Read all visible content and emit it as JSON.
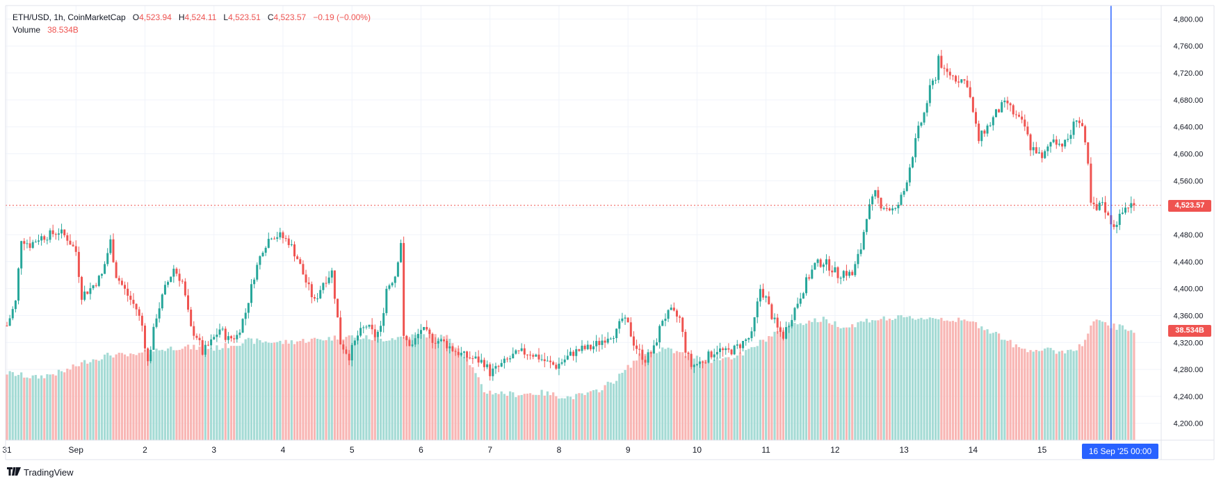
{
  "legend": {
    "symbol": "ETH/USD, 1h, CoinMarketCap",
    "open_label": "O",
    "open": "4,523.94",
    "high_label": "H",
    "high": "4,524.11",
    "low_label": "L",
    "low": "4,523.51",
    "close_label": "C",
    "close": "4,523.57",
    "change": "−0.19 (−0.00%)",
    "volume_label": "Volume",
    "volume": "38.534B"
  },
  "price_tag": "4,523.57",
  "volume_tag": "38.534B",
  "crosshair_label": "16 Sep '25   00:00",
  "brand": "TradingView",
  "colors": {
    "up": "#26a69a",
    "down": "#ef5350",
    "vol_up": "#a5dbd5",
    "vol_down": "#f8b6b4",
    "crosshair": "#2962ff",
    "grid": "#f0f3fa"
  },
  "chart_data": {
    "type": "candlestick",
    "title": "ETH/USD, 1h, CoinMarketCap",
    "timeframe": "1h",
    "y_ticks": [
      "4,800.00",
      "4,760.00",
      "4,720.00",
      "4,680.00",
      "4,640.00",
      "4,600.00",
      "4,560.00",
      "4,520.00",
      "4,480.00",
      "4,440.00",
      "4,400.00",
      "4,360.00",
      "4,320.00",
      "4,280.00",
      "4,240.00",
      "4,200.00"
    ],
    "ylim": [
      4175,
      4820
    ],
    "x_ticks": [
      {
        "label": "31",
        "hour": 0
      },
      {
        "label": "Sep",
        "hour": 24
      },
      {
        "label": "2",
        "hour": 48
      },
      {
        "label": "3",
        "hour": 72
      },
      {
        "label": "4",
        "hour": 96
      },
      {
        "label": "5",
        "hour": 120
      },
      {
        "label": "6",
        "hour": 144
      },
      {
        "label": "7",
        "hour": 168
      },
      {
        "label": "8",
        "hour": 192
      },
      {
        "label": "9",
        "hour": 216
      },
      {
        "label": "10",
        "hour": 240
      },
      {
        "label": "11",
        "hour": 264
      },
      {
        "label": "12",
        "hour": 288
      },
      {
        "label": "13",
        "hour": 312
      },
      {
        "label": "14",
        "hour": 336
      },
      {
        "label": "15",
        "hour": 360
      }
    ],
    "last_price": 4523.57,
    "crosshair_hour": 384,
    "close_anchors": [
      [
        0,
        4345
      ],
      [
        3,
        4380
      ],
      [
        5,
        4475
      ],
      [
        8,
        4465
      ],
      [
        11,
        4475
      ],
      [
        15,
        4480
      ],
      [
        18,
        4485
      ],
      [
        21,
        4475
      ],
      [
        24,
        4455
      ],
      [
        26,
        4390
      ],
      [
        29,
        4400
      ],
      [
        33,
        4420
      ],
      [
        36,
        4470
      ],
      [
        38,
        4420
      ],
      [
        42,
        4390
      ],
      [
        45,
        4370
      ],
      [
        47,
        4345
      ],
      [
        49,
        4290
      ],
      [
        52,
        4360
      ],
      [
        55,
        4400
      ],
      [
        58,
        4430
      ],
      [
        61,
        4410
      ],
      [
        64,
        4340
      ],
      [
        66,
        4330
      ],
      [
        68,
        4305
      ],
      [
        71,
        4320
      ],
      [
        74,
        4340
      ],
      [
        77,
        4325
      ],
      [
        80,
        4330
      ],
      [
        83,
        4365
      ],
      [
        86,
        4420
      ],
      [
        89,
        4460
      ],
      [
        92,
        4480
      ],
      [
        95,
        4478
      ],
      [
        98,
        4470
      ],
      [
        101,
        4445
      ],
      [
        104,
        4410
      ],
      [
        107,
        4380
      ],
      [
        110,
        4410
      ],
      [
        113,
        4425
      ],
      [
        116,
        4320
      ],
      [
        119,
        4300
      ],
      [
        122,
        4330
      ],
      [
        125,
        4345
      ],
      [
        128,
        4330
      ],
      [
        130,
        4340
      ],
      [
        132,
        4400
      ],
      [
        135,
        4420
      ],
      [
        137,
        4470
      ],
      [
        138,
        4325
      ],
      [
        141,
        4315
      ],
      [
        144,
        4340
      ],
      [
        148,
        4325
      ],
      [
        152,
        4320
      ],
      [
        155,
        4310
      ],
      [
        159,
        4300
      ],
      [
        163,
        4295
      ],
      [
        166,
        4290
      ],
      [
        168,
        4275
      ],
      [
        170,
        4280
      ],
      [
        173,
        4290
      ],
      [
        176,
        4300
      ],
      [
        179,
        4305
      ],
      [
        182,
        4305
      ],
      [
        185,
        4298
      ],
      [
        188,
        4290
      ],
      [
        191,
        4285
      ],
      [
        194,
        4295
      ],
      [
        197,
        4305
      ],
      [
        200,
        4310
      ],
      [
        203,
        4312
      ],
      [
        206,
        4320
      ],
      [
        209,
        4330
      ],
      [
        212,
        4335
      ],
      [
        214,
        4355
      ],
      [
        216,
        4345
      ],
      [
        218,
        4320
      ],
      [
        220,
        4305
      ],
      [
        222,
        4295
      ],
      [
        225,
        4310
      ],
      [
        228,
        4355
      ],
      [
        231,
        4365
      ],
      [
        234,
        4355
      ],
      [
        236,
        4310
      ],
      [
        238,
        4285
      ],
      [
        241,
        4290
      ],
      [
        244,
        4300
      ],
      [
        247,
        4310
      ],
      [
        250,
        4305
      ],
      [
        253,
        4310
      ],
      [
        256,
        4320
      ],
      [
        259,
        4330
      ],
      [
        262,
        4400
      ],
      [
        264,
        4385
      ],
      [
        266,
        4360
      ],
      [
        268,
        4340
      ],
      [
        270,
        4330
      ],
      [
        272,
        4350
      ],
      [
        275,
        4380
      ],
      [
        278,
        4410
      ],
      [
        281,
        4435
      ],
      [
        284,
        4440
      ],
      [
        287,
        4430
      ],
      [
        289,
        4420
      ],
      [
        291,
        4425
      ],
      [
        294,
        4420
      ],
      [
        297,
        4460
      ],
      [
        299,
        4510
      ],
      [
        302,
        4540
      ],
      [
        304,
        4525
      ],
      [
        306,
        4520
      ],
      [
        309,
        4515
      ],
      [
        312,
        4545
      ],
      [
        315,
        4600
      ],
      [
        317,
        4635
      ],
      [
        319,
        4660
      ],
      [
        321,
        4695
      ],
      [
        323,
        4715
      ],
      [
        324,
        4745
      ],
      [
        326,
        4720
      ],
      [
        328,
        4718
      ],
      [
        330,
        4712
      ],
      [
        332,
        4710
      ],
      [
        334,
        4705
      ],
      [
        336,
        4660
      ],
      [
        338,
        4620
      ],
      [
        340,
        4635
      ],
      [
        342,
        4645
      ],
      [
        344,
        4660
      ],
      [
        346,
        4670
      ],
      [
        348,
        4675
      ],
      [
        350,
        4660
      ],
      [
        352,
        4650
      ],
      [
        354,
        4640
      ],
      [
        356,
        4610
      ],
      [
        358,
        4605
      ],
      [
        360,
        4590
      ],
      [
        362,
        4610
      ],
      [
        364,
        4625
      ],
      [
        366,
        4615
      ],
      [
        368,
        4615
      ],
      [
        370,
        4630
      ],
      [
        372,
        4655
      ],
      [
        374,
        4640
      ],
      [
        376,
        4580
      ],
      [
        377,
        4525
      ],
      [
        379,
        4515
      ],
      [
        381,
        4530
      ],
      [
        383,
        4505
      ],
      [
        385,
        4495
      ],
      [
        387,
        4505
      ],
      [
        389,
        4520
      ],
      [
        391,
        4525
      ],
      [
        392,
        4523.57
      ]
    ],
    "volume_anchors": [
      [
        0,
        4.4
      ],
      [
        10,
        4.1
      ],
      [
        20,
        4.5
      ],
      [
        28,
        5.2
      ],
      [
        36,
        5.6
      ],
      [
        44,
        5.5
      ],
      [
        52,
        5.9
      ],
      [
        60,
        6.1
      ],
      [
        72,
        6.0
      ],
      [
        84,
        6.5
      ],
      [
        96,
        6.4
      ],
      [
        108,
        6.6
      ],
      [
        120,
        6.8
      ],
      [
        130,
        6.6
      ],
      [
        140,
        6.8
      ],
      [
        146,
        6.9
      ],
      [
        154,
        6.7
      ],
      [
        160,
        5.4
      ],
      [
        166,
        3.2
      ],
      [
        176,
        3.0
      ],
      [
        186,
        3.1
      ],
      [
        196,
        2.8
      ],
      [
        204,
        3.1
      ],
      [
        212,
        4.0
      ],
      [
        220,
        5.5
      ],
      [
        228,
        6.0
      ],
      [
        236,
        5.6
      ],
      [
        244,
        5.2
      ],
      [
        256,
        5.6
      ],
      [
        262,
        6.4
      ],
      [
        272,
        7.6
      ],
      [
        284,
        7.9
      ],
      [
        292,
        7.4
      ],
      [
        300,
        7.9
      ],
      [
        312,
        8.0
      ],
      [
        324,
        8.0
      ],
      [
        336,
        7.7
      ],
      [
        344,
        7.0
      ],
      [
        352,
        6.0
      ],
      [
        360,
        5.9
      ],
      [
        368,
        5.8
      ],
      [
        374,
        6.2
      ],
      [
        378,
        7.8
      ],
      [
        384,
        7.5
      ],
      [
        392,
        7.2
      ]
    ]
  }
}
